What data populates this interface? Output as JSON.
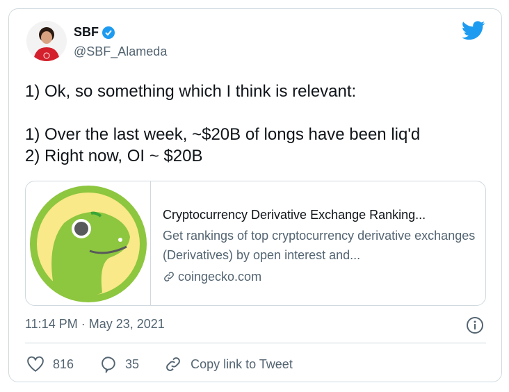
{
  "author": {
    "name": "SBF",
    "handle": "@SBF_Alameda",
    "verified": true
  },
  "tweet": {
    "lines": [
      "1) Ok, so something which I think is relevant:",
      "",
      "1) Over the last week, ~$20B of longs have been liq'd",
      "2) Right now, OI ~ $20B"
    ]
  },
  "card": {
    "title": "Cryptocurrency Derivative Exchange Ranking...",
    "description": "Get rankings of top cryptocurrency derivative exchanges (Derivatives) by open interest and...",
    "domain": "coingecko.com"
  },
  "timestamp": "11:14 PM · May 23, 2021",
  "actions": {
    "likes": "816",
    "replies": "35",
    "copy_link": "Copy link to Tweet"
  },
  "colors": {
    "accent": "#1d9bf0",
    "secondary_text": "#536471"
  }
}
